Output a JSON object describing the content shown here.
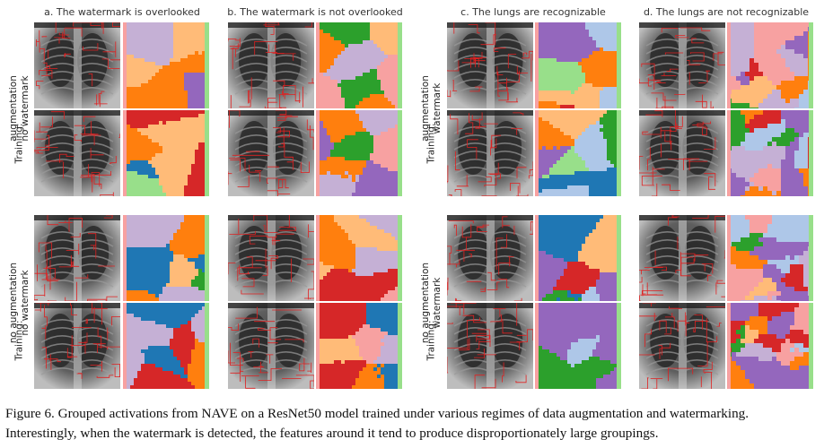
{
  "columns": [
    {
      "title": "a. The watermark is overlooked"
    },
    {
      "title": "b. The watermark is not overlooked"
    },
    {
      "title": "c. The lungs are recognizable"
    },
    {
      "title": "d. The lungs are not recognizable"
    }
  ],
  "row_labels": {
    "left_top": [
      "augmentation",
      "no watermark",
      "Training:"
    ],
    "left_bottom": [
      "no augmentation",
      "no watermark",
      "Training:"
    ],
    "right_top": [
      "augmentation",
      "watermark",
      "Training:"
    ],
    "right_bottom": [
      "no augmentation",
      "watermark",
      "Training:"
    ]
  },
  "caption": {
    "line1": "Figure 6. Grouped activations from NAVE on a ResNet50 model trained under various regimes of data augmentation and watermarking.",
    "line2": "Interestingly, when the watermark is detected, the features around it tend to produce disproportionately large groupings."
  },
  "colors": {
    "red": "#d62728",
    "blue": "#1f77b4",
    "green": "#2ca02c",
    "orange": "#ff7f0e",
    "purple": "#9467bd",
    "pink": "#f7a1a1",
    "light_orange": "#ffbb78",
    "light_green": "#98df8a",
    "light_blue": "#aec7e8",
    "lavender": "#c5b0d5",
    "brown": "#8c564b"
  }
}
